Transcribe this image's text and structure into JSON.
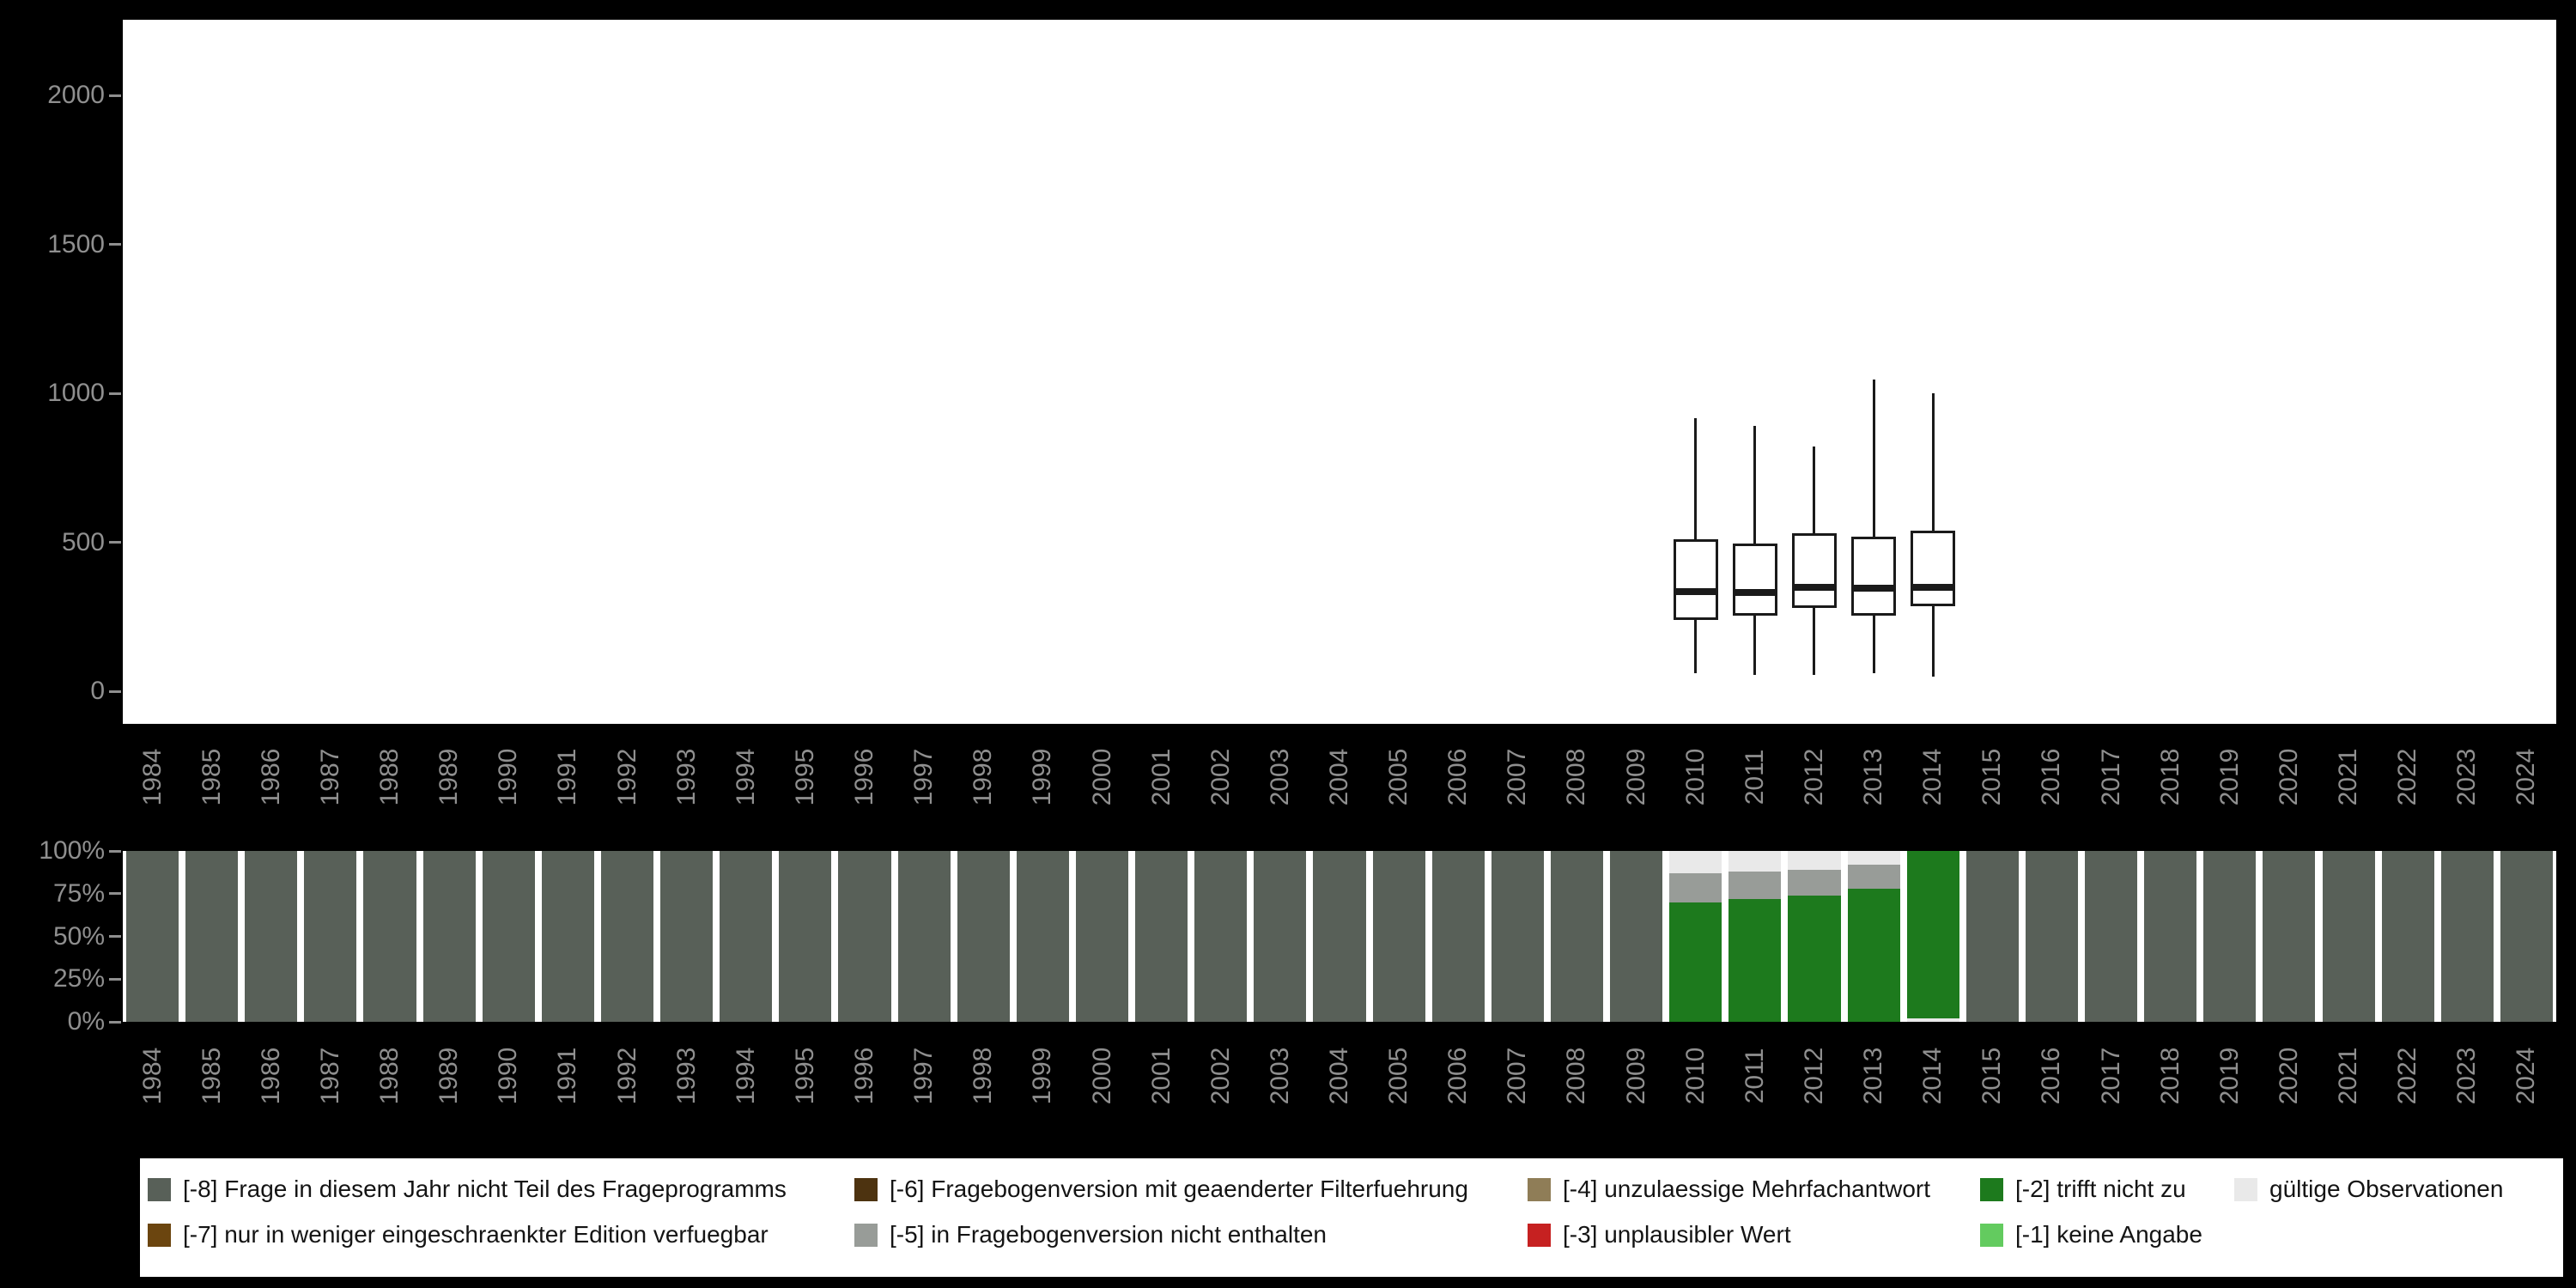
{
  "colors": {
    "background": "#000000",
    "plot_background": "#ffffff",
    "axis_text": "#8f8f8f",
    "box_stroke": "#1a1a1a",
    "codes": {
      "-8": "#586058",
      "-7": "#6b450f",
      "-6": "#4d3310",
      "-5": "#989c98",
      "-4": "#8f7d57",
      "-3": "#c62121",
      "-2": "#1d7a1d",
      "-1": "#63cb5f",
      "valid": "#e9e9e9"
    }
  },
  "years": [
    "1984",
    "1985",
    "1986",
    "1987",
    "1988",
    "1989",
    "1990",
    "1991",
    "1992",
    "1993",
    "1994",
    "1995",
    "1996",
    "1997",
    "1998",
    "1999",
    "2000",
    "2001",
    "2002",
    "2003",
    "2004",
    "2005",
    "2006",
    "2007",
    "2008",
    "2009",
    "2010",
    "2011",
    "2012",
    "2013",
    "2014",
    "2015",
    "2016",
    "2017",
    "2018",
    "2019",
    "2020",
    "2021",
    "2022",
    "2023",
    "2024"
  ],
  "chart_data": [
    {
      "type": "boxplot",
      "title": "",
      "xlabel": "",
      "ylabel": "",
      "ylim": [
        0,
        2200
      ],
      "yticks": [
        0,
        500,
        1000,
        1500,
        2000
      ],
      "grid": false,
      "series": [
        {
          "year": "2010",
          "whisker_low": 60,
          "q1": 240,
          "median": 335,
          "q3": 510,
          "whisker_high": 915
        },
        {
          "year": "2011",
          "whisker_low": 55,
          "q1": 255,
          "median": 330,
          "q3": 495,
          "whisker_high": 890
        },
        {
          "year": "2012",
          "whisker_low": 55,
          "q1": 280,
          "median": 350,
          "q3": 530,
          "whisker_high": 820
        },
        {
          "year": "2013",
          "whisker_low": 60,
          "q1": 255,
          "median": 345,
          "q3": 520,
          "whisker_high": 1045
        },
        {
          "year": "2014",
          "whisker_low": 50,
          "q1": 285,
          "median": 350,
          "q3": 540,
          "whisker_high": 1000
        }
      ]
    },
    {
      "type": "bar",
      "stacked": true,
      "unit": "percent",
      "title": "",
      "xlabel": "",
      "ylabel": "",
      "yticks": [
        "0%",
        "25%",
        "50%",
        "75%",
        "100%"
      ],
      "default_segments": [
        {
          "code": "-8",
          "pct": 100
        }
      ],
      "overrides": {
        "2010": [
          {
            "code": "-2",
            "pct": 70
          },
          {
            "code": "-5",
            "pct": 17
          },
          {
            "code": "valid",
            "pct": 13
          }
        ],
        "2011": [
          {
            "code": "-2",
            "pct": 72
          },
          {
            "code": "-5",
            "pct": 16
          },
          {
            "code": "valid",
            "pct": 12
          }
        ],
        "2012": [
          {
            "code": "-2",
            "pct": 74
          },
          {
            "code": "-5",
            "pct": 15
          },
          {
            "code": "valid",
            "pct": 11
          }
        ],
        "2013": [
          {
            "code": "-2",
            "pct": 78
          },
          {
            "code": "-5",
            "pct": 14
          },
          {
            "code": "valid",
            "pct": 8
          }
        ],
        "2014": [
          {
            "code": "valid",
            "pct": 2
          },
          {
            "code": "-2",
            "pct": 98
          }
        ]
      }
    }
  ],
  "legend": {
    "items": [
      {
        "code": "-8",
        "label": "[-8] Frage in diesem Jahr nicht Teil des Frageprogramms",
        "row": 0,
        "col": 0
      },
      {
        "code": "-6",
        "label": "[-6] Fragebogenversion mit geaenderter Filterfuehrung",
        "row": 0,
        "col": 1
      },
      {
        "code": "-4",
        "label": "[-4] unzulaessige Mehrfachantwort",
        "row": 0,
        "col": 2
      },
      {
        "code": "-2",
        "label": "[-2] trifft nicht zu",
        "row": 0,
        "col": 3
      },
      {
        "code": "valid",
        "label": "gültige Observationen",
        "row": 0,
        "col": 4
      },
      {
        "code": "-7",
        "label": "[-7] nur in weniger eingeschraenkter Edition verfuegbar",
        "row": 1,
        "col": 0
      },
      {
        "code": "-5",
        "label": "[-5] in Fragebogenversion nicht enthalten",
        "row": 1,
        "col": 1
      },
      {
        "code": "-3",
        "label": "[-3] unplausibler Wert",
        "row": 1,
        "col": 2
      },
      {
        "code": "-1",
        "label": "[-1] keine Angabe",
        "row": 1,
        "col": 3
      }
    ]
  }
}
